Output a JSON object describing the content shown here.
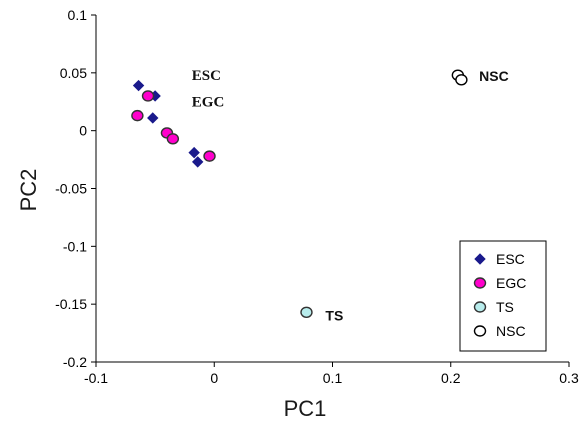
{
  "chart_data": {
    "type": "scatter",
    "xlabel": "PC1",
    "ylabel": "PC2",
    "xlim": [
      -0.1,
      0.3
    ],
    "ylim": [
      -0.2,
      0.1
    ],
    "x_ticks": [
      -0.1,
      0,
      0.1,
      0.2,
      0.3
    ],
    "x_tick_labels": [
      "-0.1",
      "0",
      "0.1",
      "0.2",
      "0.3"
    ],
    "y_ticks": [
      0.1,
      0.05,
      0,
      -0.05,
      -0.1,
      -0.15,
      -0.2
    ],
    "y_tick_labels": [
      "0.1",
      "0.05",
      "0",
      "-0.05",
      "-0.1",
      "-0.15",
      "-0.2"
    ],
    "grid": false,
    "legend_position": "bottom-right",
    "series": [
      {
        "name": "ESC",
        "marker": "diamond",
        "color": "#1a1a8c",
        "edge": "#1a1a8c",
        "x": [
          -0.064,
          -0.052,
          -0.05,
          -0.017,
          -0.014
        ],
        "y": [
          0.039,
          0.011,
          0.03,
          -0.019,
          -0.027
        ]
      },
      {
        "name": "EGC",
        "marker": "circle",
        "color": "#ff00cc",
        "edge": "#333333",
        "x": [
          -0.065,
          -0.056,
          -0.04,
          -0.035,
          -0.004
        ],
        "y": [
          0.013,
          0.03,
          -0.002,
          -0.007,
          -0.022
        ]
      },
      {
        "name": "TS",
        "marker": "circle",
        "color": "#b8ecec",
        "edge": "#333333",
        "x": [
          0.078
        ],
        "y": [
          -0.157
        ]
      },
      {
        "name": "NSC",
        "marker": "circle",
        "color": "#ffffff",
        "edge": "#000000",
        "x": [
          0.206,
          0.209
        ],
        "y": [
          0.048,
          0.044
        ]
      }
    ],
    "annotations": [
      {
        "text": "ESC",
        "x": -0.019,
        "y": 0.044,
        "style": "serif"
      },
      {
        "text": "EGC",
        "x": -0.019,
        "y": 0.021,
        "style": "serif"
      },
      {
        "text": "NSC",
        "x": 0.224,
        "y": 0.043,
        "style": "sans"
      },
      {
        "text": "TS",
        "x": 0.094,
        "y": -0.164,
        "style": "sans"
      }
    ]
  }
}
